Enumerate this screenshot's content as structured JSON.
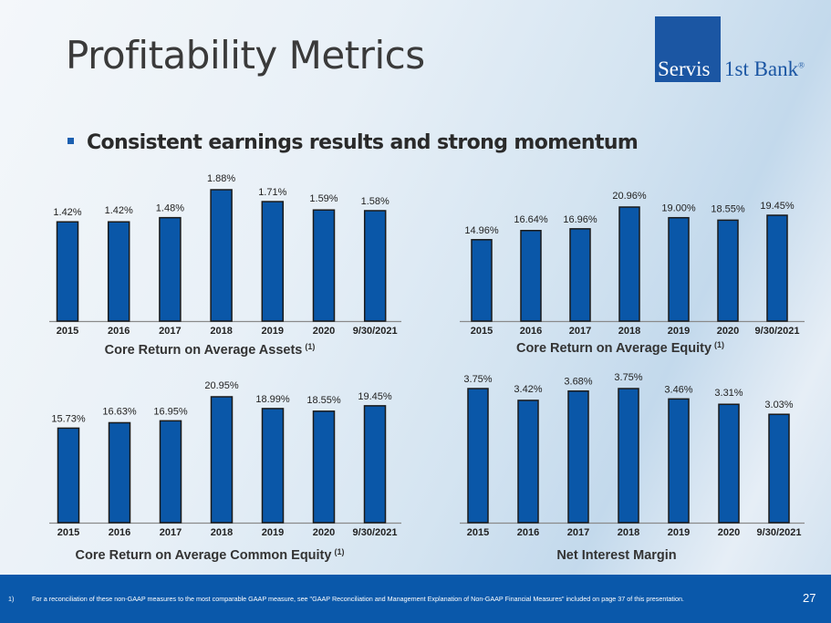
{
  "header": {
    "title": "Profitability Metrics",
    "logo": {
      "left_text": "Servis",
      "right_text": "1st Bank",
      "registered": "®"
    }
  },
  "bullet": {
    "text": "Consistent earnings results and strong momentum"
  },
  "colors": {
    "bar": "#0a57a8",
    "bar_outline": "#1a1a1a",
    "footer": "#0a58aa",
    "logo": "#1b56a3"
  },
  "chart_data": [
    {
      "type": "bar",
      "title": "Core Return on Average Assets",
      "title_sup": "(1)",
      "categories": [
        "2015",
        "2016",
        "2017",
        "2018",
        "2019",
        "2020",
        "9/30/2021"
      ],
      "values": [
        1.42,
        1.42,
        1.48,
        1.88,
        1.71,
        1.59,
        1.58
      ],
      "labels": [
        "1.42%",
        "1.42%",
        "1.48%",
        "1.88%",
        "1.71%",
        "1.59%",
        "1.58%"
      ],
      "ylim": [
        0,
        1.88
      ],
      "xlabel": "",
      "ylabel": "",
      "grid": false,
      "legend": "none"
    },
    {
      "type": "bar",
      "title": "Core Return on Average Equity",
      "title_sup": "(1)",
      "categories": [
        "2015",
        "2016",
        "2017",
        "2018",
        "2019",
        "2020",
        "9/30/2021"
      ],
      "values": [
        14.96,
        16.64,
        16.96,
        20.96,
        19.0,
        18.55,
        19.45
      ],
      "labels": [
        "14.96%",
        "16.64%",
        "16.96%",
        "20.96%",
        "19.00%",
        "18.55%",
        "19.45%"
      ],
      "ylim": [
        0,
        20.96
      ],
      "xlabel": "",
      "ylabel": "",
      "grid": false,
      "legend": "none"
    },
    {
      "type": "bar",
      "title": "Core Return on Average Common Equity",
      "title_sup": "(1)",
      "categories": [
        "2015",
        "2016",
        "2017",
        "2018",
        "2019",
        "2020",
        "9/30/2021"
      ],
      "values": [
        15.73,
        16.63,
        16.95,
        20.95,
        18.99,
        18.55,
        19.45
      ],
      "labels": [
        "15.73%",
        "16.63%",
        "16.95%",
        "20.95%",
        "18.99%",
        "18.55%",
        "19.45%"
      ],
      "ylim": [
        0,
        20.95
      ],
      "xlabel": "",
      "ylabel": "",
      "grid": false,
      "legend": "none"
    },
    {
      "type": "bar",
      "title": "Net Interest Margin",
      "title_sup": "",
      "categories": [
        "2015",
        "2016",
        "2017",
        "2018",
        "2019",
        "2020",
        "9/30/2021"
      ],
      "values": [
        3.75,
        3.42,
        3.68,
        3.75,
        3.46,
        3.31,
        3.03
      ],
      "labels": [
        "3.75%",
        "3.42%",
        "3.68%",
        "3.75%",
        "3.46%",
        "3.31%",
        "3.03%"
      ],
      "ylim": [
        0,
        3.75
      ],
      "xlabel": "",
      "ylabel": "",
      "grid": false,
      "legend": "none"
    }
  ],
  "footer": {
    "note_number": "1)",
    "note_text": "For a reconciliation of these non-GAAP measures to the most comparable GAAP measure, see \"GAAP Reconciliation and Management Explanation of Non-GAAP Financial Measures\" included on page 37 of this presentation.",
    "page_number": "27"
  }
}
